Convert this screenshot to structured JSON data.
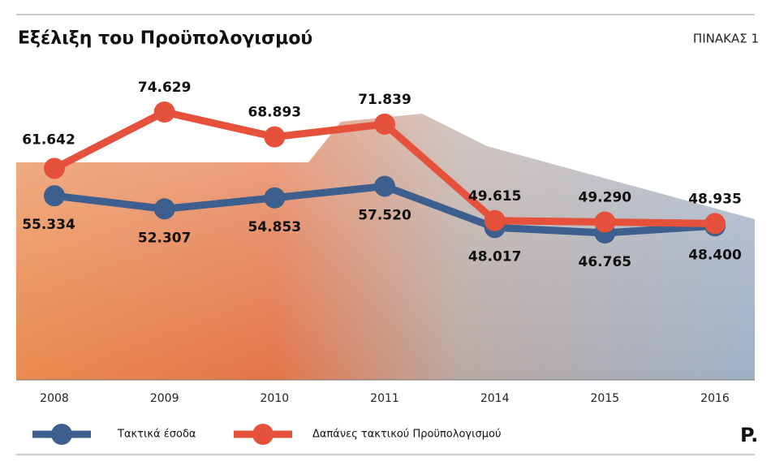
{
  "chart_data": {
    "type": "line",
    "title": "Εξέλιξη του Προϋπολογισμού",
    "tag": "ΠΙΝΑΚΑΣ 1",
    "logo": "P.",
    "categories": [
      "2008",
      "2009",
      "2010",
      "2011",
      "2014",
      "2015",
      "2016"
    ],
    "series": [
      {
        "name": "Τακτικά έσοδα",
        "color": "#3c5f8d",
        "values": [
          55334,
          52307,
          54853,
          57520,
          48017,
          46765,
          48400
        ],
        "value_labels": [
          "55.334",
          "52.307",
          "54.853",
          "57.520",
          "48.017",
          "46.765",
          "48.400"
        ]
      },
      {
        "name": "Δαπάνες τακτικού Προϋπολογισμού",
        "color": "#e5513b",
        "values": [
          61642,
          74629,
          68893,
          71839,
          49615,
          49290,
          48935
        ],
        "value_labels": [
          "61.642",
          "74.629",
          "68.893",
          "71.839",
          "49.615",
          "49.290",
          "48.935"
        ]
      }
    ]
  }
}
